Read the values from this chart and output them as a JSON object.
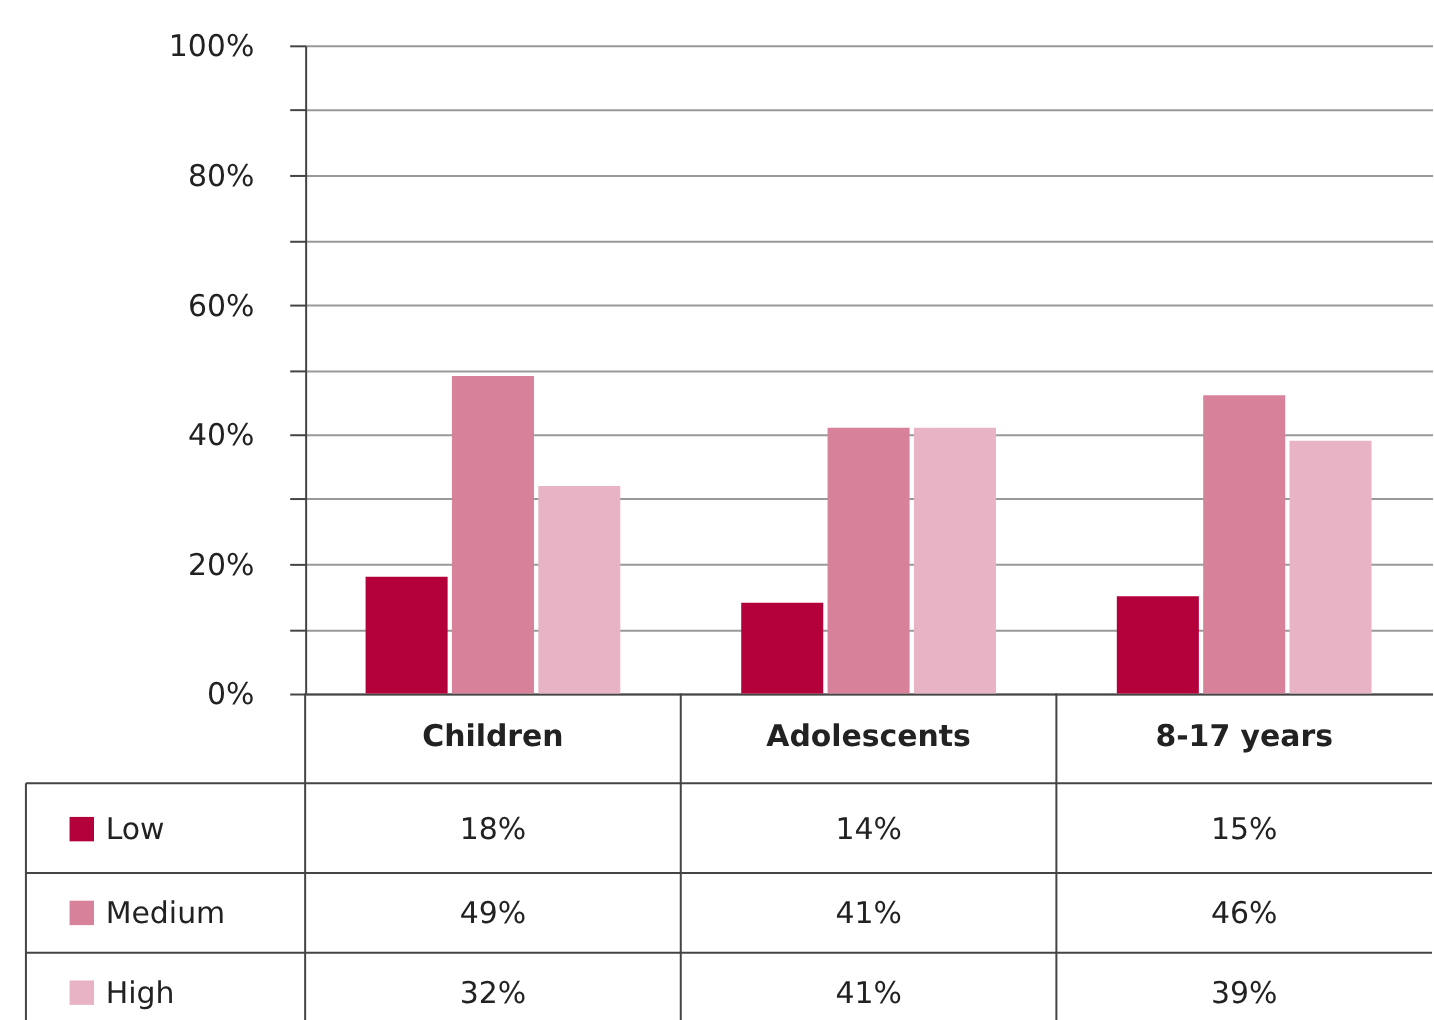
{
  "chart_data": {
    "type": "bar",
    "categories": [
      "Children",
      "Adolescents",
      "8-17 years"
    ],
    "series": [
      {
        "name": "Low",
        "color": "#b4003a",
        "values": [
          18,
          14,
          15
        ],
        "value_labels": [
          "18%",
          "14%",
          "15%"
        ]
      },
      {
        "name": "Medium",
        "color": "#d8819b",
        "values": [
          49,
          41,
          46
        ],
        "value_labels": [
          "49%",
          "41%",
          "46%"
        ]
      },
      {
        "name": "High",
        "color": "#e8b4c5",
        "values": [
          32,
          41,
          39
        ],
        "value_labels": [
          "32%",
          "41%",
          "39%"
        ]
      }
    ],
    "ylim": [
      0,
      100
    ],
    "yticks": [
      {
        "value": 0,
        "label": "0%"
      },
      {
        "value": 10,
        "label": null
      },
      {
        "value": 20,
        "label": "20%"
      },
      {
        "value": 30,
        "label": null
      },
      {
        "value": 40,
        "label": "40%"
      },
      {
        "value": 50,
        "label": null
      },
      {
        "value": 60,
        "label": "60%"
      },
      {
        "value": 70,
        "label": null
      },
      {
        "value": 80,
        "label": "80%"
      },
      {
        "value": 90,
        "label": null
      },
      {
        "value": 100,
        "label": "100%"
      }
    ],
    "grid": true,
    "legend": "bottom"
  }
}
